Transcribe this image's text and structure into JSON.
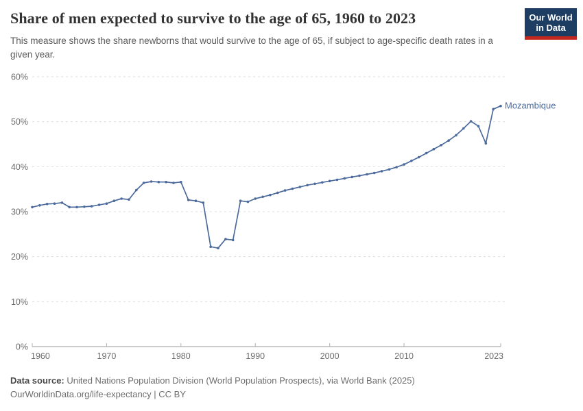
{
  "header": {
    "title": "Share of men expected to survive to the age of 65, 1960 to 2023",
    "subtitle": "This measure shows the share newborns that would survive to the age of 65, if subject to age-specific death rates in a given year.",
    "logo": {
      "line1": "Our World",
      "line2": "in Data"
    }
  },
  "chart_data": {
    "type": "line",
    "title": "Share of men expected to survive to the age of 65, 1960 to 2023",
    "xlabel": "",
    "ylabel": "",
    "xlim": [
      1960,
      2023
    ],
    "ylim": [
      0,
      62
    ],
    "x_ticks": [
      1960,
      1970,
      1980,
      1990,
      2000,
      2010,
      2023
    ],
    "y_ticks": [
      0,
      10,
      20,
      30,
      40,
      50,
      60
    ],
    "y_tick_suffix": "%",
    "grid": "horizontal-dashed",
    "legend_position": "end-of-line-label",
    "series": [
      {
        "name": "Mozambique",
        "color": "#4c6a9c",
        "x": [
          1960,
          1961,
          1962,
          1963,
          1964,
          1965,
          1966,
          1967,
          1968,
          1969,
          1970,
          1971,
          1972,
          1973,
          1974,
          1975,
          1976,
          1977,
          1978,
          1979,
          1980,
          1981,
          1982,
          1983,
          1984,
          1985,
          1986,
          1987,
          1988,
          1989,
          1990,
          1991,
          1992,
          1993,
          1994,
          1995,
          1996,
          1997,
          1998,
          1999,
          2000,
          2001,
          2002,
          2003,
          2004,
          2005,
          2006,
          2007,
          2008,
          2009,
          2010,
          2011,
          2012,
          2013,
          2014,
          2015,
          2016,
          2017,
          2018,
          2019,
          2020,
          2021,
          2022,
          2023
        ],
        "values": [
          31.0,
          31.4,
          31.7,
          31.8,
          32.0,
          31.0,
          31.0,
          31.1,
          31.2,
          31.5,
          31.8,
          32.4,
          32.9,
          32.7,
          34.8,
          36.4,
          36.7,
          36.6,
          36.6,
          36.4,
          36.6,
          32.6,
          32.4,
          32.0,
          22.2,
          21.9,
          23.9,
          23.7,
          32.4,
          32.2,
          32.9,
          33.3,
          33.7,
          34.2,
          34.7,
          35.1,
          35.5,
          35.9,
          36.2,
          36.5,
          36.8,
          37.1,
          37.4,
          37.7,
          38.0,
          38.3,
          38.6,
          39.0,
          39.4,
          39.9,
          40.5,
          41.3,
          42.1,
          43.0,
          43.9,
          44.8,
          45.8,
          47.0,
          48.5,
          50.1,
          49.0,
          45.2,
          52.8,
          53.5
        ]
      }
    ]
  },
  "footer": {
    "source_label": "Data source:",
    "source_text": " United Nations Population Division (World Population Prospects), via World Bank (2025)",
    "note_text": "OurWorldinData.org/life-expectancy | CC BY"
  },
  "colors": {
    "series_blue": "#4c6a9c",
    "grid": "#dddddd",
    "axis_line": "#999999",
    "tick_label": "#6b6b6b",
    "logo_navy": "#1d3d63",
    "logo_red": "#c3281e",
    "title_text": "#333333",
    "subtitle_text": "#5b5b5b"
  }
}
